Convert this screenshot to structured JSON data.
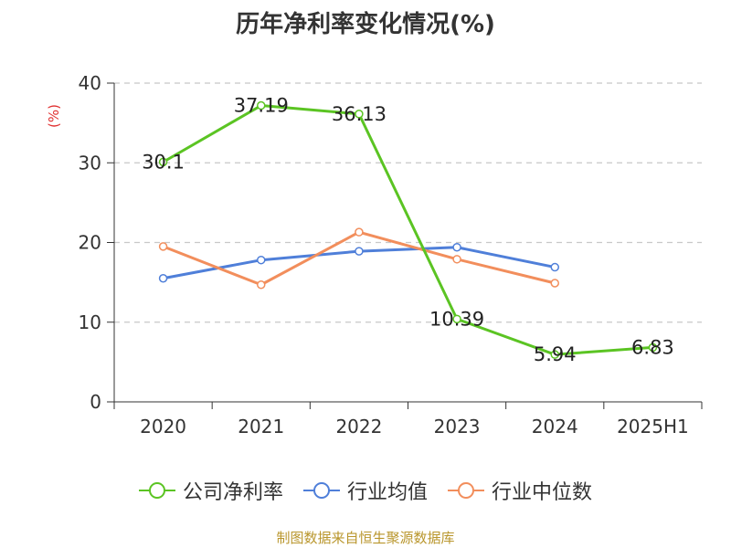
{
  "chart_data": {
    "type": "line",
    "title": "历年净利率变化情况(%)",
    "ylabel": "(%)",
    "categories": [
      "2020",
      "2021",
      "2022",
      "2023",
      "2024",
      "2025H1"
    ],
    "ylim": [
      0,
      40
    ],
    "yticks": [
      "0",
      "10",
      "20",
      "30",
      "40"
    ],
    "grid": true,
    "legend_position": "bottom",
    "series": [
      {
        "name": "公司净利率",
        "color": "#5bc423",
        "values": [
          30.1,
          37.19,
          36.13,
          10.39,
          5.94,
          6.83
        ],
        "labels": [
          "30.1",
          "37.19",
          "36.13",
          "10.39",
          "5.94",
          "6.83"
        ]
      },
      {
        "name": "行业均值",
        "color": "#4f7fd9",
        "values": [
          15.5,
          17.8,
          18.9,
          19.4,
          16.9,
          null
        ]
      },
      {
        "name": "行业中位数",
        "color": "#f28e5c",
        "values": [
          19.5,
          14.7,
          21.3,
          17.9,
          14.9,
          null
        ]
      }
    ]
  },
  "colors": {
    "ylabel": "#e03030",
    "axis": "#333333",
    "grid": "#c8c8c8",
    "footer": "#b9962c"
  },
  "footer": {
    "source": "制图数据来自恒生聚源数据库"
  }
}
